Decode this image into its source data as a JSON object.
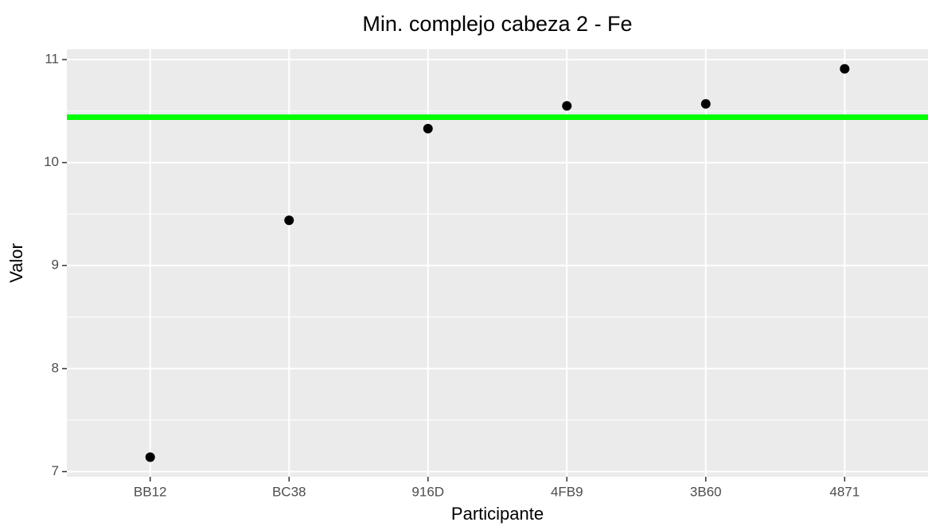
{
  "chart_data": {
    "type": "scatter",
    "title": "Min. complejo cabeza 2 - Fe",
    "x_label": "Participante",
    "y_label": "Valor",
    "categories": [
      "BB12",
      "BC38",
      "916D",
      "4FB9",
      "3B60",
      "4871"
    ],
    "values": [
      7.14,
      9.44,
      10.33,
      10.55,
      10.57,
      10.91
    ],
    "color": "#000000",
    "reference_line": {
      "value": 10.44,
      "color": "#00ff00"
    },
    "ylim": [
      6.95,
      11.1
    ],
    "yticks": [
      7,
      8,
      9,
      10,
      11
    ],
    "grid": true
  }
}
